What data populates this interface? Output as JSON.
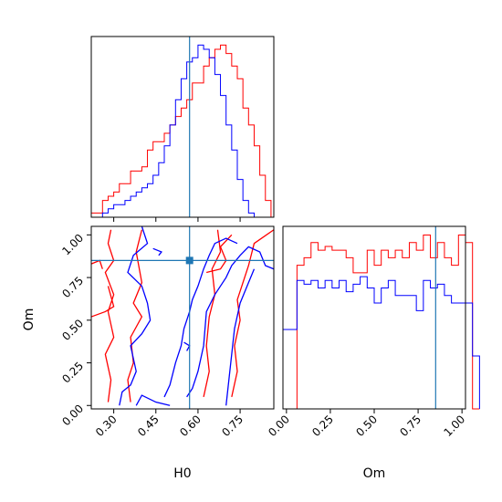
{
  "colors": {
    "series_1": "#ff0000",
    "series_2": "#0000ff",
    "truth": "#1f77b4",
    "axes": "#000000",
    "background": "#ffffff"
  },
  "chart_data": [
    {
      "type": "histogram",
      "panel": "H0 marginal (top-left)",
      "x_param": "H0",
      "xlim": [
        0.22,
        0.87
      ],
      "y_ticks_shown": false,
      "x_tick_labels_shown": false,
      "truth_x": 0.57,
      "bin_width": 0.02,
      "bin_edges_start": 0.22,
      "series": [
        {
          "color": "red",
          "values": [
            1,
            1,
            4,
            5,
            6,
            8,
            8,
            11,
            11,
            12,
            16,
            18,
            18,
            20,
            22,
            24,
            26,
            28,
            32,
            32,
            36,
            38,
            40,
            41,
            39,
            36,
            33,
            26,
            22,
            17,
            10,
            4
          ]
        },
        {
          "color": "blue",
          "values": [
            0,
            0,
            1,
            2,
            3,
            3,
            4,
            5,
            6,
            7,
            8,
            10,
            13,
            17,
            22,
            28,
            33,
            37,
            38,
            41,
            40,
            38,
            34,
            29,
            22,
            16,
            9,
            4,
            1,
            0,
            0,
            0
          ]
        }
      ]
    },
    {
      "type": "contour",
      "panel": "H0 vs Om joint (bottom-left)",
      "xlabel": "H0",
      "ylabel": "Om",
      "xlim": [
        0.22,
        0.87
      ],
      "ylim": [
        -0.02,
        1.05
      ],
      "x_ticks": [
        "0.30",
        "0.45",
        "0.60",
        "0.75"
      ],
      "y_ticks": [
        "0.00",
        "0.25",
        "0.50",
        "0.75",
        "1.00"
      ],
      "truth": [
        0.57,
        0.85
      ],
      "series": [
        {
          "color": "red",
          "contours": [
            [
              [
                0.28,
                0.02
              ],
              [
                0.29,
                0.15
              ],
              [
                0.27,
                0.3
              ],
              [
                0.3,
                0.4
              ],
              [
                0.28,
                0.55
              ],
              [
                0.3,
                0.65
              ],
              [
                0.27,
                0.78
              ],
              [
                0.3,
                0.85
              ],
              [
                0.28,
                0.95
              ],
              [
                0.29,
                1.03
              ]
            ],
            [
              [
                0.36,
                0.02
              ],
              [
                0.35,
                0.15
              ],
              [
                0.37,
                0.25
              ],
              [
                0.36,
                0.4
              ],
              [
                0.4,
                0.52
              ],
              [
                0.37,
                0.6
              ],
              [
                0.4,
                0.72
              ],
              [
                0.38,
                0.9
              ],
              [
                0.4,
                1.03
              ]
            ],
            [
              [
                0.22,
                0.52
              ],
              [
                0.27,
                0.55
              ],
              [
                0.3,
                0.58
              ],
              [
                0.28,
                0.7
              ]
            ],
            [
              [
                0.22,
                0.83
              ],
              [
                0.25,
                0.85
              ],
              [
                0.26,
                0.8
              ]
            ],
            [
              [
                0.62,
                0.05
              ],
              [
                0.64,
                0.2
              ],
              [
                0.63,
                0.35
              ],
              [
                0.64,
                0.52
              ],
              [
                0.66,
                0.65
              ],
              [
                0.65,
                0.8
              ],
              [
                0.68,
                0.9
              ],
              [
                0.67,
                1.03
              ]
            ],
            [
              [
                0.72,
                0.05
              ],
              [
                0.74,
                0.2
              ],
              [
                0.73,
                0.35
              ],
              [
                0.75,
                0.5
              ],
              [
                0.74,
                0.62
              ],
              [
                0.76,
                0.72
              ],
              [
                0.78,
                0.82
              ],
              [
                0.8,
                0.95
              ],
              [
                0.87,
                1.03
              ]
            ],
            [
              [
                0.63,
                0.78
              ],
              [
                0.68,
                0.8
              ],
              [
                0.7,
                0.85
              ],
              [
                0.68,
                0.93
              ],
              [
                0.72,
                1.0
              ]
            ]
          ]
        },
        {
          "color": "blue",
          "contours": [
            [
              [
                0.32,
                0.0
              ],
              [
                0.33,
                0.08
              ],
              [
                0.36,
                0.12
              ],
              [
                0.38,
                0.2
              ],
              [
                0.36,
                0.35
              ],
              [
                0.4,
                0.42
              ],
              [
                0.43,
                0.5
              ],
              [
                0.42,
                0.6
              ],
              [
                0.4,
                0.7
              ],
              [
                0.35,
                0.78
              ],
              [
                0.37,
                0.88
              ],
              [
                0.42,
                0.95
              ],
              [
                0.4,
                1.05
              ]
            ],
            [
              [
                0.38,
                0.0
              ],
              [
                0.4,
                0.06
              ],
              [
                0.45,
                0.02
              ],
              [
                0.5,
                0.0
              ]
            ],
            [
              [
                0.48,
                0.05
              ],
              [
                0.5,
                0.12
              ],
              [
                0.52,
                0.25
              ],
              [
                0.54,
                0.35
              ],
              [
                0.55,
                0.45
              ],
              [
                0.57,
                0.55
              ],
              [
                0.58,
                0.62
              ],
              [
                0.6,
                0.7
              ],
              [
                0.62,
                0.8
              ],
              [
                0.64,
                0.88
              ],
              [
                0.66,
                0.95
              ],
              [
                0.7,
                0.98
              ],
              [
                0.74,
                0.95
              ]
            ],
            [
              [
                0.56,
                0.05
              ],
              [
                0.58,
                0.1
              ],
              [
                0.6,
                0.2
              ],
              [
                0.62,
                0.35
              ],
              [
                0.63,
                0.55
              ],
              [
                0.66,
                0.65
              ],
              [
                0.7,
                0.75
              ],
              [
                0.72,
                0.82
              ],
              [
                0.75,
                0.88
              ],
              [
                0.78,
                0.93
              ],
              [
                0.82,
                0.9
              ],
              [
                0.84,
                0.82
              ],
              [
                0.87,
                0.8
              ]
            ],
            [
              [
                0.7,
                0.0
              ],
              [
                0.71,
                0.15
              ],
              [
                0.72,
                0.3
              ],
              [
                0.73,
                0.45
              ],
              [
                0.75,
                0.6
              ],
              [
                0.78,
                0.72
              ],
              [
                0.8,
                0.8
              ]
            ],
            [
              [
                0.44,
                0.92
              ],
              [
                0.47,
                0.9
              ],
              [
                0.46,
                0.88
              ]
            ],
            [
              [
                0.55,
                0.37
              ],
              [
                0.57,
                0.35
              ],
              [
                0.56,
                0.32
              ]
            ]
          ]
        }
      ]
    },
    {
      "type": "histogram",
      "panel": "Om marginal (bottom-right)",
      "xlabel": "Om",
      "xlim": [
        -0.02,
        1.02
      ],
      "x_ticks": [
        "0.00",
        "0.25",
        "0.50",
        "0.75",
        "1.00"
      ],
      "y_ticks_shown": false,
      "truth_x": 0.85,
      "bin_width": 0.04,
      "bin_edges_start": -0.02,
      "series": [
        {
          "color": "red",
          "values": [
            0,
            0,
            38,
            40,
            44,
            42,
            43,
            42,
            42,
            40,
            36,
            36,
            42,
            38,
            42,
            40,
            42,
            40,
            44,
            42,
            46,
            40,
            44,
            40,
            38,
            46,
            44,
            0
          ]
        },
        {
          "color": "blue",
          "values": [
            21,
            21,
            34,
            33,
            34,
            32,
            34,
            32,
            34,
            31,
            33,
            35,
            32,
            28,
            32,
            34,
            30,
            30,
            30,
            26,
            34,
            32,
            33,
            30,
            28,
            28,
            28,
            14
          ]
        }
      ]
    }
  ]
}
